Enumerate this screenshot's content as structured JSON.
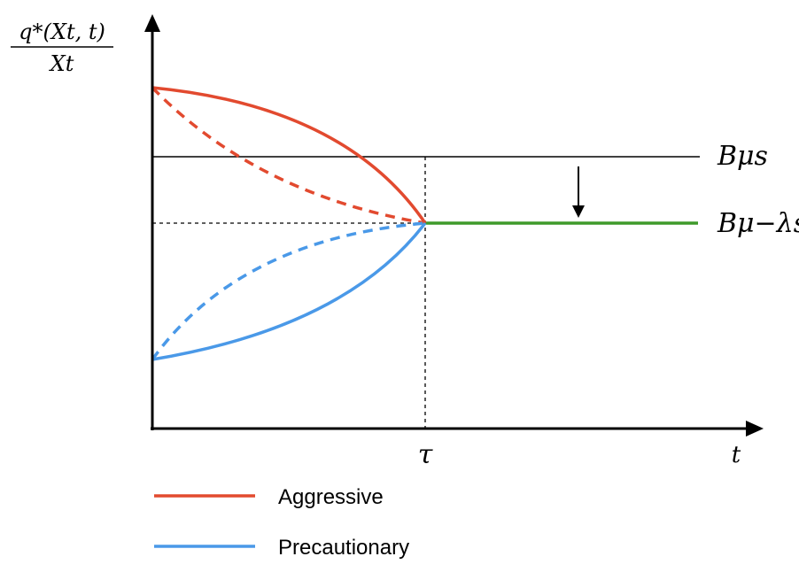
{
  "chart_data": {
    "type": "line",
    "x_axis": {
      "label": "t",
      "tick_label": "τ"
    },
    "y_axis": {
      "label_numerator": "q*(Xt, t)",
      "label_denominator": "Xt"
    },
    "levels": {
      "upper": {
        "label": "Bμs",
        "value": 3.1
      },
      "lower": {
        "label": "Bμ−λs",
        "value": 2.3
      }
    },
    "series": [
      {
        "name": "Aggressive",
        "color": "#e24a2f"
      },
      {
        "name": "Precautionary",
        "color": "#4a99e8"
      }
    ],
    "post_tau_color": "#3e9a2a",
    "arrow_direction": "down",
    "legend_position": "bottom-left"
  }
}
